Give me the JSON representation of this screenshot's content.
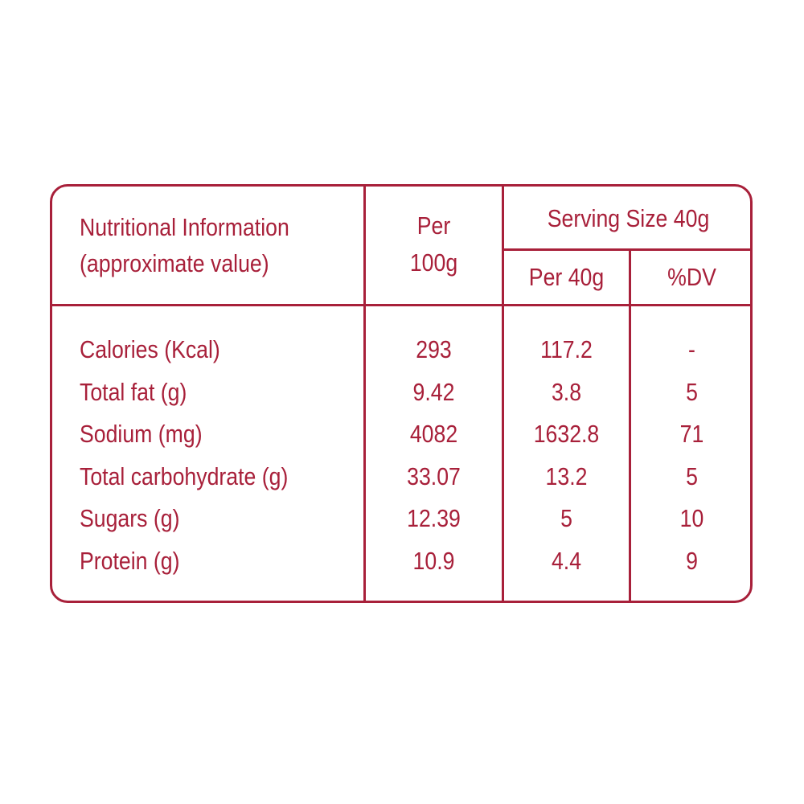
{
  "header": {
    "title_line1": "Nutritional Information",
    "title_line2": "(approximate value)",
    "per100_line1": "Per",
    "per100_line2": "100g",
    "serving_size": "Serving Size 40g",
    "per40": "Per 40g",
    "dv": "%DV"
  },
  "rows": [
    {
      "label": "Calories (Kcal)",
      "per100": "293",
      "per40": "117.2",
      "dv": "-"
    },
    {
      "label": "Total fat (g)",
      "per100": "9.42",
      "per40": "3.8",
      "dv": "5"
    },
    {
      "label": "Sodium (mg)",
      "per100": "4082",
      "per40": "1632.8",
      "dv": "71"
    },
    {
      "label": "Total carbohydrate (g)",
      "per100": "33.07",
      "per40": "13.2",
      "dv": "5"
    },
    {
      "label": "Sugars (g)",
      "per100": "12.39",
      "per40": "5",
      "dv": "10"
    },
    {
      "label": "Protein (g)",
      "per100": "10.9",
      "per40": "4.4",
      "dv": "9"
    }
  ],
  "colors": {
    "accent": "#a8203a",
    "background": "#ffffff"
  }
}
